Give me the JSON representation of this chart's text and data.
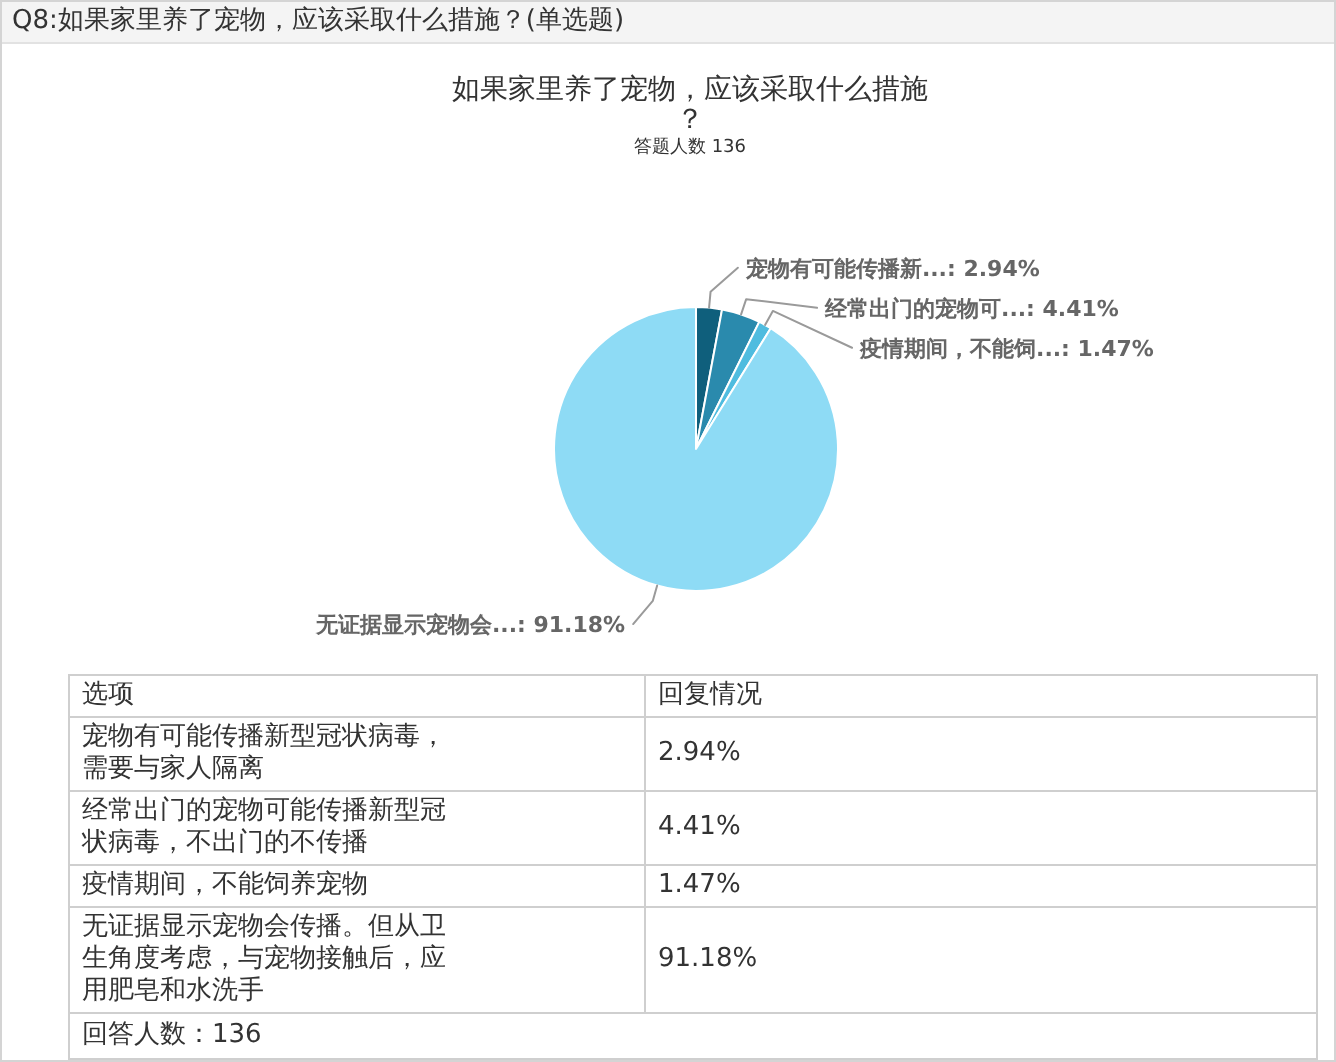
{
  "chart_data": [
    {
      "type": "pie",
      "title": "如果家里养了宠物，应该采取什么措施？",
      "subtitle": "答题人数 136",
      "categories": [
        "宠物有可能传播新...",
        "经常出门的宠物可...",
        "疫情期间，不能饲...",
        "无证据显示宠物会..."
      ],
      "values": [
        2.94,
        4.41,
        1.47,
        91.18
      ],
      "colors": [
        "#0f5f7c",
        "#2a8aad",
        "#4fbcdf",
        "#8edbf5"
      ],
      "value_labels": [
        "2.94%",
        "4.41%",
        "1.47%",
        "91.18%"
      ],
      "annotations": [
        "Q8:如果家里养了宠物，应该采取什么措施？(单选题)"
      ]
    },
    {
      "type": "other",
      "annotations": [
        "选项",
        "回复情况",
        "宠物有可能传播新型冠状病毒，需要与家人隔离",
        "2.94%",
        "经常出门的宠物可能传播新型冠状病毒，不出门的不传播",
        "4.41%",
        "疫情期间，不能饲养宠物",
        "1.47%",
        "无证据显示宠物会传播。但从卫生角度考虑，与宠物接触后，应用肥皂和水洗手",
        "91.18%",
        "回答人数：136"
      ]
    }
  ]
}
